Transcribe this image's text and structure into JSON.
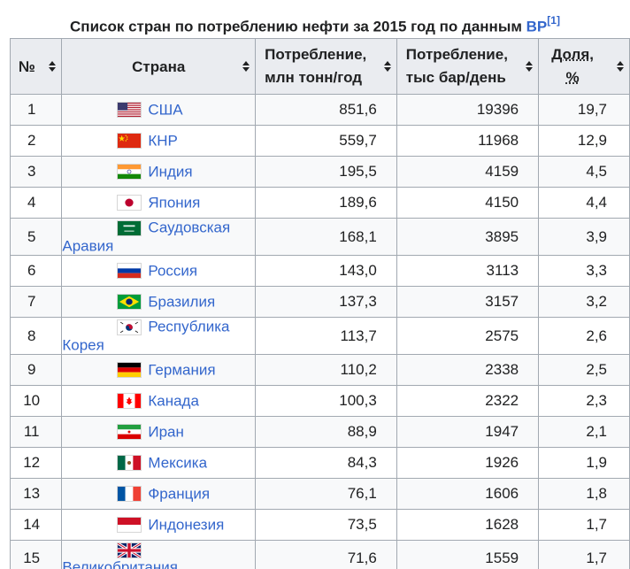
{
  "caption": {
    "text": "Список стран по потреблению нефти за 2015 год по данным ",
    "link": "BP",
    "ref": "[1]"
  },
  "headers": {
    "num": "№",
    "country": "Страна",
    "v1_line1": "Потребление,",
    "v1_line2": "млн тонн/год",
    "v2_line1": "Потребление,",
    "v2_line2": "тыс бар/день",
    "v3_line1": "Доля,",
    "v3_line2": "%"
  },
  "rows": [
    {
      "num": "1",
      "country": "США",
      "flag": "us-flag-icon",
      "mt": "851,6",
      "kbd": "19396",
      "share": "19,7"
    },
    {
      "num": "2",
      "country": "КНР",
      "flag": "cn-flag-icon",
      "mt": "559,7",
      "kbd": "11968",
      "share": "12,9"
    },
    {
      "num": "3",
      "country": "Индия",
      "flag": "in-flag-icon",
      "mt": "195,5",
      "kbd": "4159",
      "share": "4,5"
    },
    {
      "num": "4",
      "country": "Япония",
      "flag": "jp-flag-icon",
      "mt": "189,6",
      "kbd": "4150",
      "share": "4,4"
    },
    {
      "num": "5",
      "country": "Саудовская Аравия",
      "flag": "sa-flag-icon",
      "mt": "168,1",
      "kbd": "3895",
      "share": "3,9"
    },
    {
      "num": "6",
      "country": "Россия",
      "flag": "ru-flag-icon",
      "mt": "143,0",
      "kbd": "3113",
      "share": "3,3"
    },
    {
      "num": "7",
      "country": "Бразилия",
      "flag": "br-flag-icon",
      "mt": "137,3",
      "kbd": "3157",
      "share": "3,2"
    },
    {
      "num": "8",
      "country": "Республика Корея",
      "flag": "kr-flag-icon",
      "mt": "113,7",
      "kbd": "2575",
      "share": "2,6"
    },
    {
      "num": "9",
      "country": "Германия",
      "flag": "de-flag-icon",
      "mt": "110,2",
      "kbd": "2338",
      "share": "2,5"
    },
    {
      "num": "10",
      "country": "Канада",
      "flag": "ca-flag-icon",
      "mt": "100,3",
      "kbd": "2322",
      "share": "2,3"
    },
    {
      "num": "11",
      "country": "Иран",
      "flag": "ir-flag-icon",
      "mt": "88,9",
      "kbd": "1947",
      "share": "2,1"
    },
    {
      "num": "12",
      "country": "Мексика",
      "flag": "mx-flag-icon",
      "mt": "84,3",
      "kbd": "1926",
      "share": "1,9"
    },
    {
      "num": "13",
      "country": "Франция",
      "flag": "fr-flag-icon",
      "mt": "76,1",
      "kbd": "1606",
      "share": "1,8"
    },
    {
      "num": "14",
      "country": "Индонезия",
      "flag": "id-flag-icon",
      "mt": "73,5",
      "kbd": "1628",
      "share": "1,7"
    },
    {
      "num": "15",
      "country": "Великобритания",
      "flag": "gb-flag-icon",
      "mt": "71,6",
      "kbd": "1559",
      "share": "1,7"
    }
  ],
  "colors": {
    "link": "#3366cc",
    "header_bg": "#eaecf0",
    "border": "#a2a9b1",
    "row_alt": "#f8f9fa"
  }
}
